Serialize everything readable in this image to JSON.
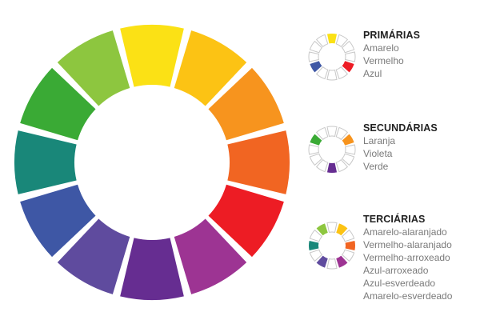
{
  "wheel_colors": [
    "#FBE115",
    "#FCC314",
    "#F7941E",
    "#F16522",
    "#ED1C24",
    "#9D3493",
    "#662D91",
    "#5F4B9E",
    "#3E57A5",
    "#198779",
    "#3AAA35",
    "#8DC63F"
  ],
  "neutral_color": "#ffffff",
  "ring_outline_color": "#c8c8c8",
  "legends": [
    {
      "id": "primarias",
      "title": "PRIMÁRIAS",
      "items": [
        "Amarelo",
        "Vermelho",
        "Azul"
      ],
      "highlight_segments": [
        0,
        4,
        8
      ]
    },
    {
      "id": "secundarias",
      "title": "SECUNDÁRIAS",
      "items": [
        "Laranja",
        "Violeta",
        "Verde"
      ],
      "highlight_segments": [
        2,
        6,
        10
      ]
    },
    {
      "id": "terciarias",
      "title": "TERCIÁRIAS",
      "items": [
        "Amarelo-alaranjado",
        "Vermelho-alaranjado",
        "Vermelho-arroxeado",
        "Azul-arroxeado",
        "Azul-esverdeado",
        "Amarelo-esverdeado"
      ],
      "highlight_segments": [
        1,
        3,
        5,
        7,
        9,
        11
      ]
    }
  ]
}
